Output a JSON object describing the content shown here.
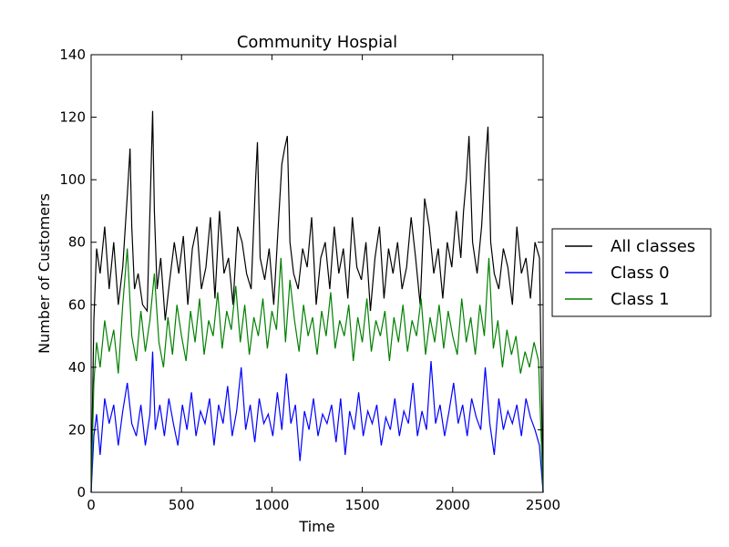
{
  "chart_data": {
    "type": "line",
    "title": "Community Hospial",
    "xlabel": "Time",
    "ylabel": "Number of Customers",
    "xlim": [
      0,
      2500
    ],
    "ylim": [
      0,
      140
    ],
    "xticks": [
      0,
      500,
      1000,
      1500,
      2000,
      2500
    ],
    "yticks": [
      0,
      20,
      40,
      60,
      80,
      100,
      120,
      140
    ],
    "grid": false,
    "legend_position": "outside-right",
    "series": [
      {
        "name": "All classes",
        "color": "#000000",
        "x": [
          0,
          15,
          30,
          50,
          75,
          100,
          125,
          150,
          175,
          200,
          215,
          225,
          240,
          260,
          285,
          310,
          330,
          340,
          350,
          365,
          385,
          410,
          435,
          460,
          485,
          510,
          535,
          560,
          585,
          610,
          635,
          660,
          685,
          710,
          735,
          760,
          785,
          810,
          835,
          860,
          885,
          910,
          920,
          935,
          960,
          985,
          1010,
          1035,
          1055,
          1070,
          1085,
          1100,
          1120,
          1145,
          1170,
          1195,
          1220,
          1245,
          1270,
          1295,
          1320,
          1345,
          1370,
          1395,
          1420,
          1445,
          1470,
          1495,
          1520,
          1545,
          1570,
          1595,
          1620,
          1645,
          1670,
          1695,
          1720,
          1745,
          1770,
          1795,
          1820,
          1845,
          1870,
          1895,
          1920,
          1945,
          1970,
          1995,
          2020,
          2045,
          2060,
          2075,
          2090,
          2110,
          2135,
          2160,
          2180,
          2195,
          2210,
          2230,
          2255,
          2280,
          2305,
          2330,
          2355,
          2380,
          2405,
          2430,
          2455,
          2480,
          2500
        ],
        "y": [
          0,
          55,
          78,
          70,
          85,
          65,
          80,
          60,
          72,
          95,
          110,
          85,
          65,
          70,
          60,
          58,
          100,
          122,
          90,
          65,
          75,
          55,
          68,
          80,
          70,
          82,
          60,
          78,
          85,
          65,
          72,
          88,
          62,
          90,
          70,
          75,
          60,
          85,
          80,
          70,
          65,
          100,
          112,
          75,
          68,
          78,
          60,
          85,
          105,
          110,
          114,
          80,
          70,
          65,
          78,
          72,
          88,
          60,
          75,
          80,
          65,
          85,
          70,
          78,
          62,
          88,
          72,
          68,
          80,
          58,
          75,
          85,
          62,
          78,
          70,
          80,
          65,
          72,
          88,
          75,
          60,
          94,
          85,
          70,
          78,
          62,
          80,
          72,
          90,
          75,
          90,
          100,
          114,
          80,
          70,
          85,
          105,
          117,
          80,
          70,
          65,
          78,
          72,
          60,
          85,
          70,
          75,
          62,
          80,
          75,
          0
        ]
      },
      {
        "name": "Class 0",
        "color": "#0000ff",
        "x": [
          0,
          15,
          30,
          50,
          75,
          100,
          125,
          150,
          175,
          200,
          225,
          250,
          275,
          300,
          325,
          340,
          355,
          380,
          405,
          430,
          455,
          480,
          505,
          530,
          555,
          580,
          605,
          630,
          655,
          680,
          705,
          730,
          755,
          780,
          805,
          830,
          855,
          880,
          905,
          930,
          955,
          980,
          1005,
          1030,
          1055,
          1080,
          1105,
          1130,
          1155,
          1180,
          1205,
          1230,
          1255,
          1280,
          1305,
          1330,
          1355,
          1380,
          1405,
          1430,
          1455,
          1480,
          1505,
          1530,
          1555,
          1580,
          1605,
          1630,
          1655,
          1680,
          1705,
          1730,
          1755,
          1780,
          1805,
          1830,
          1855,
          1880,
          1905,
          1930,
          1955,
          1980,
          2005,
          2030,
          2055,
          2080,
          2105,
          2130,
          2155,
          2180,
          2205,
          2230,
          2255,
          2280,
          2305,
          2330,
          2355,
          2380,
          2405,
          2430,
          2455,
          2480,
          2500
        ],
        "y": [
          0,
          18,
          25,
          12,
          30,
          22,
          28,
          15,
          26,
          35,
          22,
          18,
          28,
          15,
          25,
          45,
          20,
          28,
          18,
          30,
          22,
          15,
          28,
          20,
          32,
          18,
          26,
          22,
          30,
          15,
          28,
          22,
          34,
          18,
          26,
          40,
          20,
          28,
          16,
          30,
          22,
          25,
          18,
          32,
          20,
          38,
          22,
          28,
          10,
          26,
          20,
          30,
          18,
          25,
          22,
          28,
          16,
          30,
          12,
          26,
          20,
          32,
          18,
          26,
          22,
          28,
          15,
          24,
          20,
          30,
          18,
          26,
          22,
          35,
          18,
          26,
          20,
          42,
          22,
          28,
          18,
          26,
          35,
          22,
          28,
          18,
          30,
          24,
          20,
          40,
          22,
          12,
          30,
          20,
          26,
          22,
          28,
          18,
          30,
          24,
          20,
          15,
          0
        ]
      },
      {
        "name": "Class 1",
        "color": "#008000",
        "x": [
          0,
          15,
          30,
          50,
          75,
          100,
          125,
          150,
          175,
          200,
          225,
          250,
          275,
          300,
          325,
          350,
          375,
          400,
          425,
          450,
          475,
          500,
          525,
          550,
          575,
          600,
          625,
          650,
          675,
          700,
          725,
          750,
          775,
          800,
          825,
          850,
          875,
          900,
          925,
          950,
          975,
          1000,
          1025,
          1050,
          1075,
          1100,
          1125,
          1150,
          1175,
          1200,
          1225,
          1250,
          1275,
          1300,
          1325,
          1350,
          1375,
          1400,
          1425,
          1450,
          1475,
          1500,
          1525,
          1550,
          1575,
          1600,
          1625,
          1650,
          1675,
          1700,
          1725,
          1750,
          1775,
          1800,
          1825,
          1850,
          1875,
          1900,
          1925,
          1950,
          1975,
          2000,
          2025,
          2050,
          2075,
          2100,
          2125,
          2150,
          2175,
          2200,
          2225,
          2250,
          2275,
          2300,
          2325,
          2350,
          2375,
          2400,
          2425,
          2450,
          2475,
          2500
        ],
        "y": [
          0,
          35,
          48,
          40,
          55,
          45,
          52,
          38,
          60,
          78,
          50,
          42,
          58,
          45,
          55,
          70,
          48,
          40,
          56,
          44,
          60,
          50,
          42,
          58,
          48,
          62,
          44,
          55,
          50,
          64,
          46,
          58,
          52,
          66,
          48,
          60,
          44,
          56,
          50,
          62,
          46,
          58,
          52,
          75,
          48,
          68,
          55,
          45,
          60,
          50,
          56,
          44,
          58,
          50,
          64,
          46,
          55,
          50,
          60,
          42,
          56,
          48,
          62,
          45,
          55,
          50,
          58,
          42,
          56,
          48,
          60,
          45,
          55,
          50,
          62,
          44,
          56,
          48,
          60,
          46,
          58,
          50,
          44,
          62,
          48,
          56,
          44,
          60,
          50,
          75,
          46,
          55,
          40,
          52,
          44,
          50,
          38,
          45,
          40,
          48,
          42,
          0
        ]
      }
    ]
  }
}
